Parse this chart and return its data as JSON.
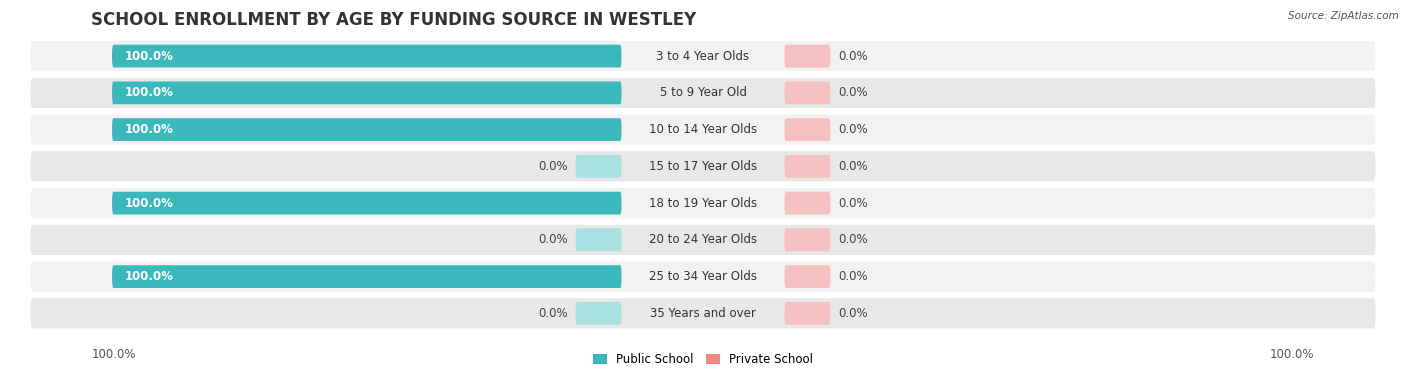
{
  "title": "SCHOOL ENROLLMENT BY AGE BY FUNDING SOURCE IN WESTLEY",
  "source": "Source: ZipAtlas.com",
  "categories": [
    "3 to 4 Year Olds",
    "5 to 9 Year Old",
    "10 to 14 Year Olds",
    "15 to 17 Year Olds",
    "18 to 19 Year Olds",
    "20 to 24 Year Olds",
    "25 to 34 Year Olds",
    "35 Years and over"
  ],
  "public_values": [
    100.0,
    100.0,
    100.0,
    0.0,
    100.0,
    0.0,
    100.0,
    0.0
  ],
  "private_values": [
    0.0,
    0.0,
    0.0,
    0.0,
    0.0,
    0.0,
    0.0,
    0.0
  ],
  "public_color": "#3ab8bb",
  "private_color": "#f08888",
  "public_color_zero": "#a8dfe0",
  "private_color_zero": "#f5c0c0",
  "row_bg_light": "#f2f2f2",
  "row_bg_dark": "#e8e8e8",
  "title_fontsize": 12,
  "label_fontsize": 8.5,
  "tick_fontsize": 8.5,
  "fig_bg_color": "#ffffff",
  "legend_public_label": "Public School",
  "legend_private_label": "Private School",
  "x_left_label": "100.0%",
  "x_right_label": "100.0%"
}
